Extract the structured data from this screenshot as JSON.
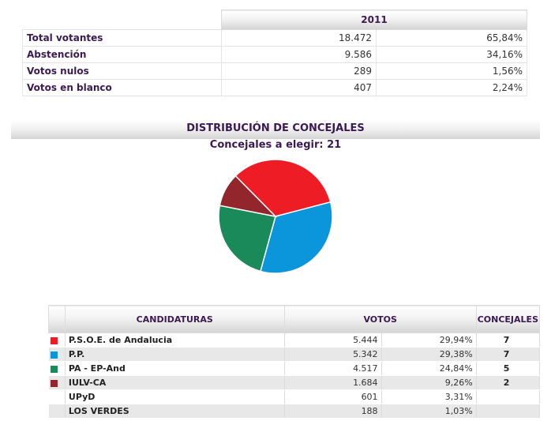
{
  "summary": {
    "year": "2011",
    "rows": [
      {
        "label": "Total votantes",
        "value": "18.472",
        "pct": "65,84%"
      },
      {
        "label": "Abstención",
        "value": "9.586",
        "pct": "34,16%"
      },
      {
        "label": "Votos nulos",
        "value": "289",
        "pct": "1,56%"
      },
      {
        "label": "Votos en blanco",
        "value": "407",
        "pct": "2,24%"
      }
    ]
  },
  "distribution": {
    "title": "DISTRIBUCIÓN DE CONCEJALES",
    "subtitle": "Concejales a elegir: 21"
  },
  "results": {
    "headers": {
      "candidaturas": "CANDIDATURAS",
      "votos": "VOTOS",
      "concejales": "CONCEJALES"
    },
    "rows": [
      {
        "party": "P.S.O.E. de Andalucia",
        "votes": "5.444",
        "pct": "29,94%",
        "seats": "7",
        "color": "#ee1c25"
      },
      {
        "party": "P.P.",
        "votes": "5.342",
        "pct": "29,38%",
        "seats": "7",
        "color": "#0b96dc"
      },
      {
        "party": "PA - EP-And",
        "votes": "4.517",
        "pct": "24,84%",
        "seats": "5",
        "color": "#1a8a5a"
      },
      {
        "party": "IULV-CA",
        "votes": "1.684",
        "pct": "9,26%",
        "seats": "2",
        "color": "#93262c"
      },
      {
        "party": "UPyD",
        "votes": "601",
        "pct": "3,31%",
        "seats": "",
        "color": ""
      },
      {
        "party": "LOS VERDES",
        "votes": "188",
        "pct": "1,03%",
        "seats": "",
        "color": ""
      }
    ]
  },
  "chart_data": {
    "type": "pie",
    "title": "DISTRIBUCIÓN DE CONCEJALES",
    "subtitle": "Concejales a elegir: 21",
    "slices": [
      {
        "label": "P.S.O.E. de Andalucia",
        "value": 7,
        "color": "#ee1c25"
      },
      {
        "label": "P.P.",
        "value": 7,
        "color": "#0b96dc"
      },
      {
        "label": "PA - EP-And",
        "value": 5,
        "color": "#1a8a5a"
      },
      {
        "label": "IULV-CA",
        "value": 2,
        "color": "#93262c"
      }
    ]
  }
}
